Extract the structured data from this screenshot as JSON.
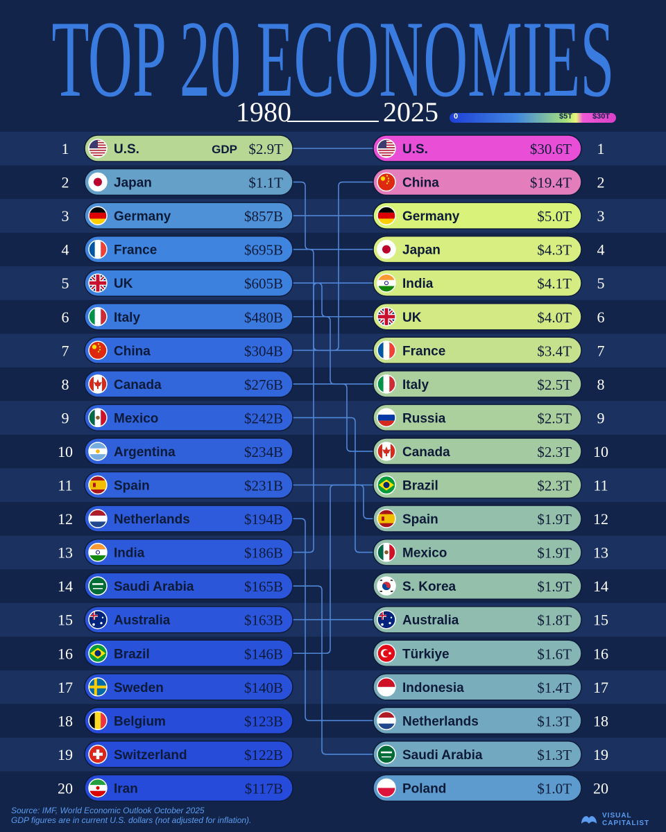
{
  "title": "TOP 20 ECONOMIES",
  "year_start": "1980",
  "year_end": "2025",
  "legend": {
    "min": "0",
    "mid": "$5T",
    "max": "$30T"
  },
  "gdp_prefix": "GDP",
  "colors": {
    "background": "#13244a",
    "stripe": "#1b3260",
    "connector": "#4f86d8",
    "title": "#3a7be0"
  },
  "footer": {
    "source": "Source: IMF, World Economic Outlook October 2025",
    "note": "GDP figures are in current U.S. dollars (not adjusted for inflation)."
  },
  "logo": {
    "line1": "VISUAL",
    "line2": "CAPITALIST"
  },
  "chart_data": {
    "type": "bump",
    "title": "TOP 20 ECONOMIES",
    "ranks": [
      1,
      2,
      3,
      4,
      5,
      6,
      7,
      8,
      9,
      10,
      11,
      12,
      13,
      14,
      15,
      16,
      17,
      18,
      19,
      20
    ],
    "series": [
      {
        "name": "1980",
        "rows": [
          {
            "rank": 1,
            "country": "U.S.",
            "label": "$2.9T",
            "value_usd_b": 2900,
            "flag": "us-flag"
          },
          {
            "rank": 2,
            "country": "Japan",
            "label": "$1.1T",
            "value_usd_b": 1100,
            "flag": "japan-flag"
          },
          {
            "rank": 3,
            "country": "Germany",
            "label": "$857B",
            "value_usd_b": 857,
            "flag": "germany-flag"
          },
          {
            "rank": 4,
            "country": "France",
            "label": "$695B",
            "value_usd_b": 695,
            "flag": "france-flag"
          },
          {
            "rank": 5,
            "country": "UK",
            "label": "$605B",
            "value_usd_b": 605,
            "flag": "uk-flag"
          },
          {
            "rank": 6,
            "country": "Italy",
            "label": "$480B",
            "value_usd_b": 480,
            "flag": "italy-flag"
          },
          {
            "rank": 7,
            "country": "China",
            "label": "$304B",
            "value_usd_b": 304,
            "flag": "china-flag"
          },
          {
            "rank": 8,
            "country": "Canada",
            "label": "$276B",
            "value_usd_b": 276,
            "flag": "canada-flag"
          },
          {
            "rank": 9,
            "country": "Mexico",
            "label": "$242B",
            "value_usd_b": 242,
            "flag": "mexico-flag"
          },
          {
            "rank": 10,
            "country": "Argentina",
            "label": "$234B",
            "value_usd_b": 234,
            "flag": "argentina-flag"
          },
          {
            "rank": 11,
            "country": "Spain",
            "label": "$231B",
            "value_usd_b": 231,
            "flag": "spain-flag"
          },
          {
            "rank": 12,
            "country": "Netherlands",
            "label": "$194B",
            "value_usd_b": 194,
            "flag": "netherlands-flag"
          },
          {
            "rank": 13,
            "country": "India",
            "label": "$186B",
            "value_usd_b": 186,
            "flag": "india-flag"
          },
          {
            "rank": 14,
            "country": "Saudi Arabia",
            "label": "$165B",
            "value_usd_b": 165,
            "flag": "saudi-arabia-flag"
          },
          {
            "rank": 15,
            "country": "Australia",
            "label": "$163B",
            "value_usd_b": 163,
            "flag": "australia-flag"
          },
          {
            "rank": 16,
            "country": "Brazil",
            "label": "$146B",
            "value_usd_b": 146,
            "flag": "brazil-flag"
          },
          {
            "rank": 17,
            "country": "Sweden",
            "label": "$140B",
            "value_usd_b": 140,
            "flag": "sweden-flag"
          },
          {
            "rank": 18,
            "country": "Belgium",
            "label": "$123B",
            "value_usd_b": 123,
            "flag": "belgium-flag"
          },
          {
            "rank": 19,
            "country": "Switzerland",
            "label": "$122B",
            "value_usd_b": 122,
            "flag": "switzerland-flag"
          },
          {
            "rank": 20,
            "country": "Iran",
            "label": "$117B",
            "value_usd_b": 117,
            "flag": "iran-flag"
          }
        ]
      },
      {
        "name": "2025",
        "rows": [
          {
            "rank": 1,
            "country": "U.S.",
            "label": "$30.6T",
            "value_usd_b": 30600,
            "flag": "us-flag"
          },
          {
            "rank": 2,
            "country": "China",
            "label": "$19.4T",
            "value_usd_b": 19400,
            "flag": "china-flag"
          },
          {
            "rank": 3,
            "country": "Germany",
            "label": "$5.0T",
            "value_usd_b": 5000,
            "flag": "germany-flag"
          },
          {
            "rank": 4,
            "country": "Japan",
            "label": "$4.3T",
            "value_usd_b": 4300,
            "flag": "japan-flag"
          },
          {
            "rank": 5,
            "country": "India",
            "label": "$4.1T",
            "value_usd_b": 4100,
            "flag": "india-flag"
          },
          {
            "rank": 6,
            "country": "UK",
            "label": "$4.0T",
            "value_usd_b": 4000,
            "flag": "uk-flag"
          },
          {
            "rank": 7,
            "country": "France",
            "label": "$3.4T",
            "value_usd_b": 3400,
            "flag": "france-flag"
          },
          {
            "rank": 8,
            "country": "Italy",
            "label": "$2.5T",
            "value_usd_b": 2500,
            "flag": "italy-flag"
          },
          {
            "rank": 9,
            "country": "Russia",
            "label": "$2.5T",
            "value_usd_b": 2500,
            "flag": "russia-flag"
          },
          {
            "rank": 10,
            "country": "Canada",
            "label": "$2.3T",
            "value_usd_b": 2300,
            "flag": "canada-flag"
          },
          {
            "rank": 11,
            "country": "Brazil",
            "label": "$2.3T",
            "value_usd_b": 2300,
            "flag": "brazil-flag"
          },
          {
            "rank": 12,
            "country": "Spain",
            "label": "$1.9T",
            "value_usd_b": 1900,
            "flag": "spain-flag"
          },
          {
            "rank": 13,
            "country": "Mexico",
            "label": "$1.9T",
            "value_usd_b": 1900,
            "flag": "mexico-flag"
          },
          {
            "rank": 14,
            "country": "S. Korea",
            "label": "$1.9T",
            "value_usd_b": 1900,
            "flag": "south-korea-flag"
          },
          {
            "rank": 15,
            "country": "Australia",
            "label": "$1.8T",
            "value_usd_b": 1800,
            "flag": "australia-flag"
          },
          {
            "rank": 16,
            "country": "Türkiye",
            "label": "$1.6T",
            "value_usd_b": 1600,
            "flag": "turkiye-flag"
          },
          {
            "rank": 17,
            "country": "Indonesia",
            "label": "$1.4T",
            "value_usd_b": 1400,
            "flag": "indonesia-flag"
          },
          {
            "rank": 18,
            "country": "Netherlands",
            "label": "$1.3T",
            "value_usd_b": 1300,
            "flag": "netherlands-flag"
          },
          {
            "rank": 19,
            "country": "Saudi Arabia",
            "label": "$1.3T",
            "value_usd_b": 1300,
            "flag": "saudi-arabia-flag"
          },
          {
            "rank": 20,
            "country": "Poland",
            "label": "$1.0T",
            "value_usd_b": 1000,
            "flag": "poland-flag"
          }
        ]
      }
    ],
    "color_scale": {
      "domain_usd_b": [
        0,
        5000,
        30000
      ],
      "colors": [
        "#2445d8",
        "#e6f778",
        "#e84fd6"
      ]
    },
    "grid": false,
    "legend": "top-right"
  }
}
